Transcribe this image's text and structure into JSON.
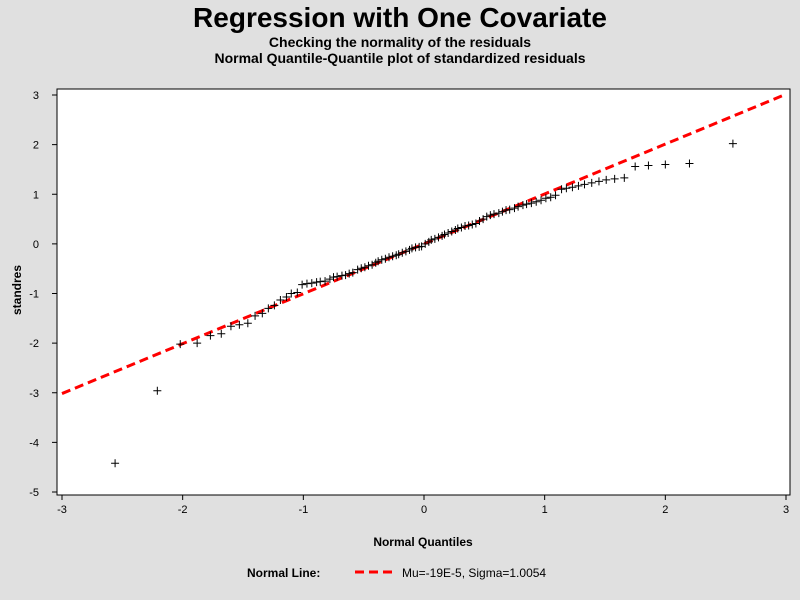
{
  "chart_data": {
    "type": "scatter",
    "title": "Regression with One Covariate",
    "subtitle": [
      "Checking the normality of the residuals",
      "Normal Quantile-Quantile plot of standardized residuals"
    ],
    "xlabel": "Normal Quantiles",
    "ylabel": "standres",
    "xlim": [
      -3,
      3
    ],
    "ylim": [
      -5,
      3
    ],
    "xticks": [
      "-3",
      "-2",
      "-1",
      "0",
      "1",
      "2",
      "3"
    ],
    "yticks": [
      "-5",
      "-4",
      "-3",
      "-2",
      "-1",
      "0",
      "1",
      "2",
      "3"
    ],
    "grid": false,
    "marker": "plus",
    "reference_line": {
      "mu": -0.00019,
      "sigma": 1.0054,
      "color": "#ff0000",
      "style": "dashed"
    },
    "points": [
      [
        -2.56,
        -4.42
      ],
      [
        -2.21,
        -2.96
      ],
      [
        -2.02,
        -2.02
      ],
      [
        -1.88,
        -2.0
      ],
      [
        -1.77,
        -1.85
      ],
      [
        -1.68,
        -1.81
      ],
      [
        -1.6,
        -1.66
      ],
      [
        -1.53,
        -1.63
      ],
      [
        -1.46,
        -1.6
      ],
      [
        -1.4,
        -1.45
      ],
      [
        -1.34,
        -1.4
      ],
      [
        -1.29,
        -1.3
      ],
      [
        -1.24,
        -1.24
      ],
      [
        -1.19,
        -1.13
      ],
      [
        -1.14,
        -1.07
      ],
      [
        -1.1,
        -1.0
      ],
      [
        -1.05,
        -0.98
      ],
      [
        -1.01,
        -0.82
      ],
      [
        -0.97,
        -0.8
      ],
      [
        -0.93,
        -0.79
      ],
      [
        -0.89,
        -0.77
      ],
      [
        -0.86,
        -0.76
      ],
      [
        -0.82,
        -0.75
      ],
      [
        -0.78,
        -0.71
      ],
      [
        -0.75,
        -0.67
      ],
      [
        -0.72,
        -0.66
      ],
      [
        -0.68,
        -0.64
      ],
      [
        -0.65,
        -0.63
      ],
      [
        -0.62,
        -0.6
      ],
      [
        -0.59,
        -0.58
      ],
      [
        -0.55,
        -0.52
      ],
      [
        -0.52,
        -0.49
      ],
      [
        -0.49,
        -0.47
      ],
      [
        -0.46,
        -0.44
      ],
      [
        -0.43,
        -0.42
      ],
      [
        -0.4,
        -0.38
      ],
      [
        -0.38,
        -0.35
      ],
      [
        -0.35,
        -0.32
      ],
      [
        -0.32,
        -0.3
      ],
      [
        -0.29,
        -0.27
      ],
      [
        -0.26,
        -0.25
      ],
      [
        -0.23,
        -0.23
      ],
      [
        -0.21,
        -0.21
      ],
      [
        -0.18,
        -0.18
      ],
      [
        -0.15,
        -0.15
      ],
      [
        -0.12,
        -0.12
      ],
      [
        -0.1,
        -0.09
      ],
      [
        -0.07,
        -0.07
      ],
      [
        -0.04,
        -0.06
      ],
      [
        -0.02,
        -0.05
      ],
      [
        0.01,
        0.0
      ],
      [
        0.04,
        0.04
      ],
      [
        0.06,
        0.08
      ],
      [
        0.09,
        0.1
      ],
      [
        0.12,
        0.13
      ],
      [
        0.15,
        0.16
      ],
      [
        0.17,
        0.19
      ],
      [
        0.2,
        0.22
      ],
      [
        0.23,
        0.25
      ],
      [
        0.26,
        0.28
      ],
      [
        0.28,
        0.31
      ],
      [
        0.31,
        0.33
      ],
      [
        0.34,
        0.36
      ],
      [
        0.37,
        0.37
      ],
      [
        0.4,
        0.39
      ],
      [
        0.43,
        0.41
      ],
      [
        0.46,
        0.46
      ],
      [
        0.49,
        0.5
      ],
      [
        0.52,
        0.55
      ],
      [
        0.55,
        0.58
      ],
      [
        0.58,
        0.6
      ],
      [
        0.62,
        0.62
      ],
      [
        0.65,
        0.65
      ],
      [
        0.68,
        0.68
      ],
      [
        0.71,
        0.69
      ],
      [
        0.75,
        0.72
      ],
      [
        0.78,
        0.75
      ],
      [
        0.82,
        0.78
      ],
      [
        0.85,
        0.8
      ],
      [
        0.89,
        0.82
      ],
      [
        0.93,
        0.85
      ],
      [
        0.97,
        0.88
      ],
      [
        1.01,
        0.92
      ],
      [
        1.05,
        0.94
      ],
      [
        1.09,
        0.98
      ],
      [
        1.14,
        1.1
      ],
      [
        1.18,
        1.12
      ],
      [
        1.23,
        1.14
      ],
      [
        1.28,
        1.17
      ],
      [
        1.33,
        1.2
      ],
      [
        1.39,
        1.23
      ],
      [
        1.45,
        1.26
      ],
      [
        1.51,
        1.29
      ],
      [
        1.58,
        1.31
      ],
      [
        1.66,
        1.33
      ],
      [
        1.75,
        1.56
      ],
      [
        1.86,
        1.58
      ],
      [
        2.0,
        1.6
      ],
      [
        2.2,
        1.62
      ],
      [
        2.56,
        2.02
      ]
    ]
  },
  "legend": {
    "label": "Normal Line:",
    "entry": "Mu=-19E-5, Sigma=1.0054",
    "color": "#ff0000"
  }
}
